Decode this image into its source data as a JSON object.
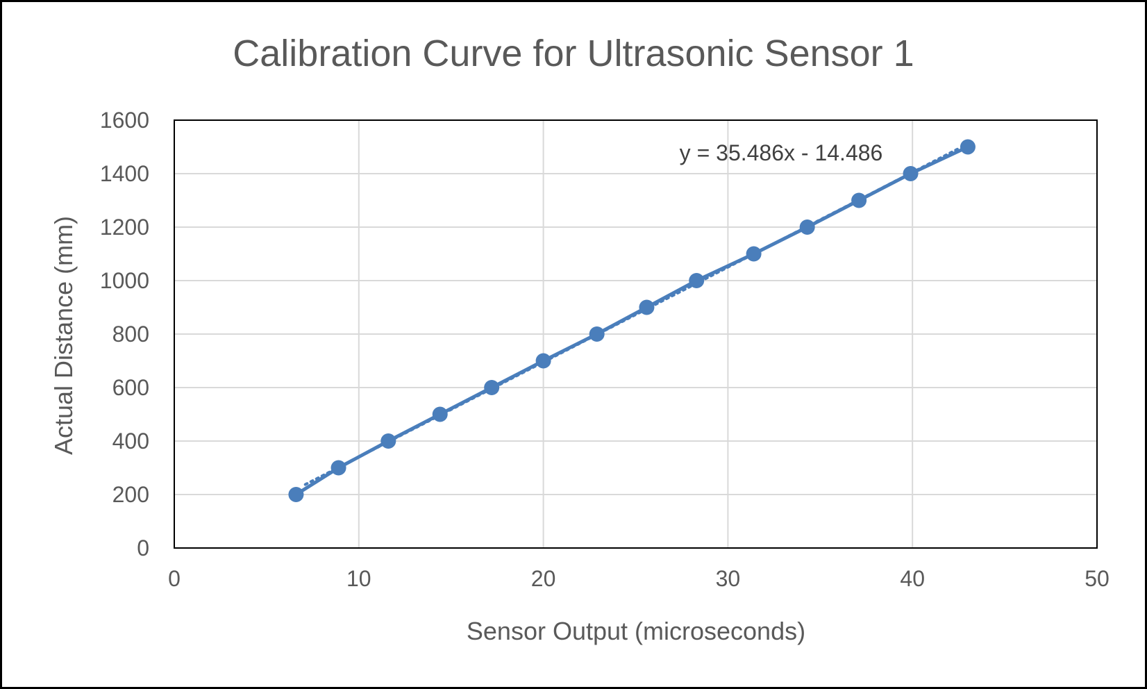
{
  "chart_data": {
    "type": "scatter",
    "title": "Calibration Curve for Ultrasonic Sensor 1",
    "xlabel": "Sensor Output (microseconds)",
    "ylabel": "Actual Distance (mm)",
    "xlim": [
      0,
      50
    ],
    "ylim": [
      0,
      1600
    ],
    "x_ticks": [
      0,
      10,
      20,
      30,
      40,
      50
    ],
    "y_ticks": [
      0,
      200,
      400,
      600,
      800,
      1000,
      1200,
      1400,
      1600
    ],
    "grid": true,
    "legend": "none",
    "series": [
      {
        "x": [
          6.6,
          8.9,
          11.6,
          14.4,
          17.2,
          20.0,
          22.9,
          25.6,
          28.3,
          31.4,
          34.3,
          37.1,
          39.9,
          43.0
        ],
        "y": [
          200,
          300,
          400,
          500,
          600,
          700,
          800,
          900,
          1000,
          1100,
          1200,
          1300,
          1400,
          1500
        ],
        "color": "#4a7ebb",
        "marker": "circle",
        "connected": true
      }
    ],
    "trendline": {
      "type": "linear",
      "slope": 35.486,
      "intercept": -14.486,
      "style": "dotted",
      "equation": "y = 35.486x - 14.486"
    }
  }
}
